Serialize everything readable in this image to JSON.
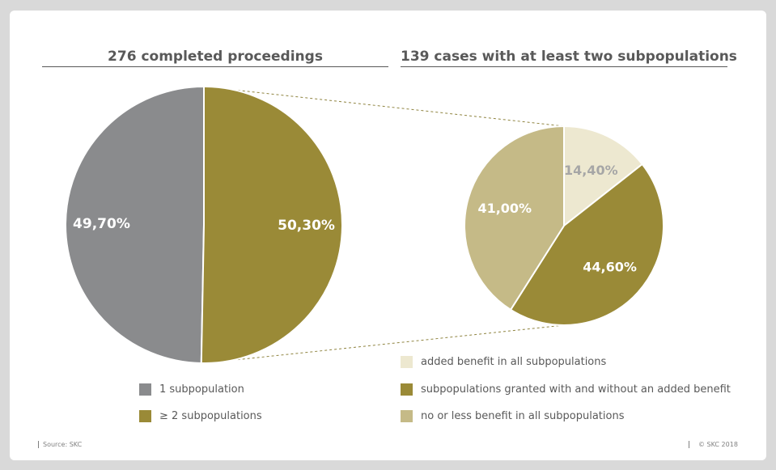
{
  "colors": {
    "gray": "#8a8b8d",
    "olive": "#9a8a37",
    "cream": "#ede8d0",
    "khaki": "#c5ba87",
    "pie_label_light": "#ffffff",
    "pie_label_dark": "#a6a6a6",
    "connector": "#8f8440"
  },
  "chart_data": [
    {
      "type": "pie",
      "title": "276 completed proceedings",
      "slices": [
        {
          "label": "1 subpopulation",
          "value": 49.7,
          "display": "49,70%",
          "color": "#8a8b8d"
        },
        {
          "label": "≥ 2 subpopulations",
          "value": 50.3,
          "display": "50,30%",
          "color": "#9a8a37"
        }
      ],
      "legend_position": "bottom"
    },
    {
      "type": "pie",
      "title": "139 cases with at least two subpopulations",
      "slices": [
        {
          "label": "added benefit in all subpopulations",
          "value": 14.4,
          "display": "14,40%",
          "color": "#ede8d0"
        },
        {
          "label": "subpopulations granted with and without an added benefit",
          "value": 44.6,
          "display": "44,60%",
          "color": "#9a8a37"
        },
        {
          "label": "no or less benefit in all subpopulations",
          "value": 41.0,
          "display": "41,00%",
          "color": "#c5ba87"
        }
      ],
      "legend_position": "bottom"
    }
  ],
  "footer": {
    "source": "Source: SKC",
    "copyright": "© SKC 2018"
  }
}
